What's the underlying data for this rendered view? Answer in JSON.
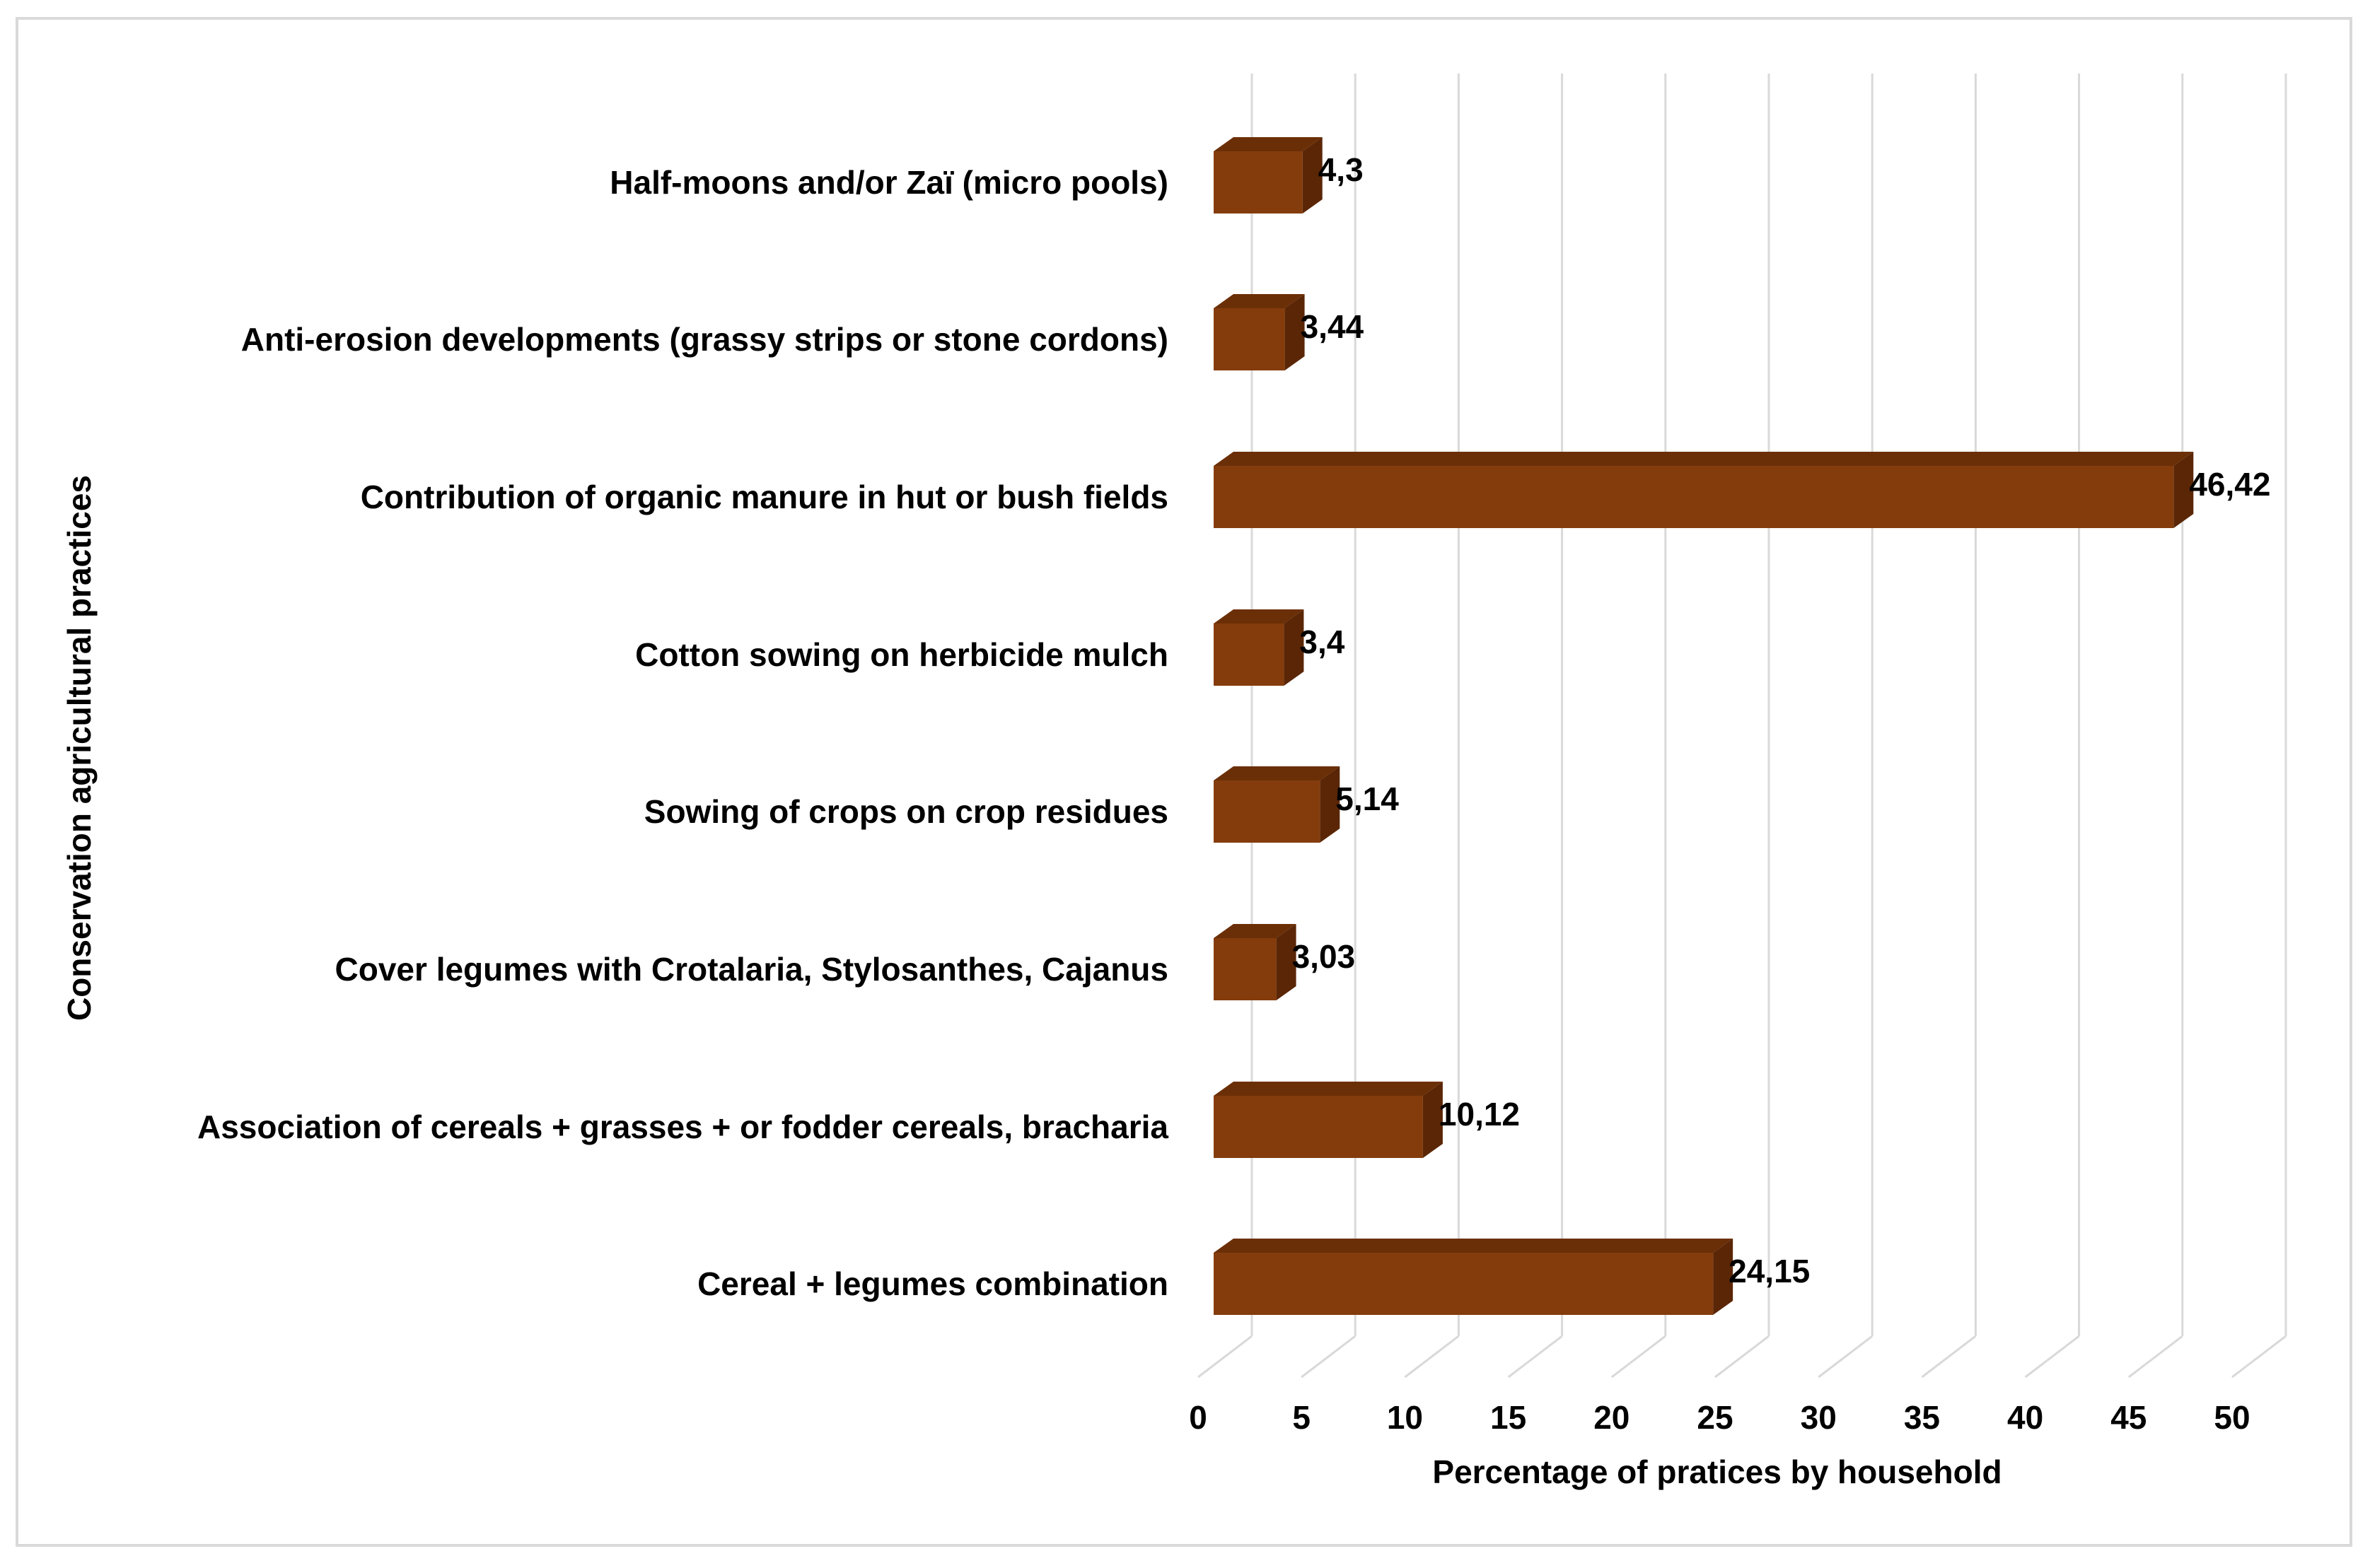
{
  "chart_data": {
    "type": "bar",
    "orientation": "horizontal",
    "style": "3d",
    "categories": [
      "Half-moons and/or Zaï (micro pools)",
      "Anti-erosion developments (grassy strips or stone cordons)",
      "Contribution of organic manure in hut or bush fields",
      "Cotton sowing on herbicide mulch",
      "Sowing of crops on crop residues",
      "Cover legumes with Crotalaria, Stylosanthes, Cajanus",
      "Association of cereals + grasses + or fodder cereals, bracharia",
      "Cereal + legumes combination"
    ],
    "values": [
      4.3,
      3.44,
      46.42,
      3.4,
      5.14,
      3.03,
      10.12,
      24.15
    ],
    "data_labels": [
      "4,3",
      "3,44",
      "46,42",
      "3,4",
      "5,14",
      "3,03",
      "10,12",
      "24,15"
    ],
    "xlabel": "Percentage of pratices by  household",
    "ylabel": "Conservation agricultural practices",
    "xlim": [
      0,
      50
    ],
    "xticks": [
      0,
      5,
      10,
      15,
      20,
      25,
      30,
      35,
      40,
      45,
      50
    ],
    "xtick_labels": [
      "0",
      "5",
      "10",
      "15",
      "20",
      "25",
      "30",
      "35",
      "40",
      "45",
      "50"
    ],
    "grid": true,
    "legend": "none",
    "colors": {
      "bar_front": "#843C0C",
      "bar_top": "#6B2F07",
      "bar_side": "#5A2606",
      "grid": "#d9d9d9",
      "frame": "#d9d9d9"
    }
  }
}
